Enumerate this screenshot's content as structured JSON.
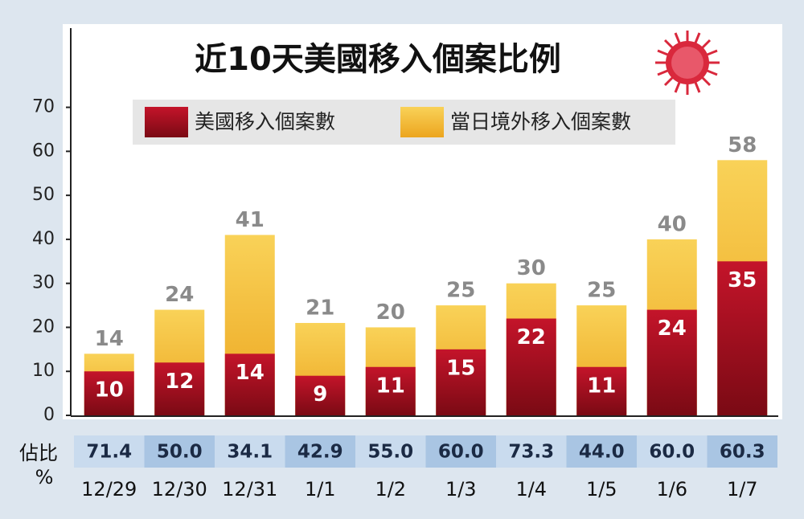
{
  "chart_data": {
    "type": "bar",
    "title": "近10天美國移入個案比例",
    "categories": [
      "12/29",
      "12/30",
      "12/31",
      "1/1",
      "1/2",
      "1/3",
      "1/4",
      "1/5",
      "1/6",
      "1/7"
    ],
    "series": [
      {
        "name": "當日境外移入個案數",
        "color": "#f2b92e",
        "values": [
          14,
          24,
          41,
          21,
          20,
          25,
          30,
          25,
          40,
          58
        ]
      },
      {
        "name": "美國移入個案數",
        "color": "#a8101e",
        "values": [
          10,
          12,
          14,
          9,
          11,
          15,
          22,
          11,
          24,
          35
        ]
      }
    ],
    "ylim": [
      0,
      88
    ],
    "yticks": [
      0,
      10,
      20,
      30,
      40,
      50,
      60,
      70
    ],
    "ratio_label_lines": [
      "佔比",
      "%"
    ],
    "ratio_values": [
      71.4,
      50,
      34.1,
      42.9,
      55,
      60,
      73.3,
      44,
      60,
      60.3
    ],
    "ratio_value_labels": [
      "71.4",
      "50.0",
      "34.1",
      "42.9",
      "55.0",
      "60.0",
      "73.3",
      "44.0",
      "60.0",
      "60.3"
    ],
    "legend_order": [
      1,
      0
    ]
  }
}
